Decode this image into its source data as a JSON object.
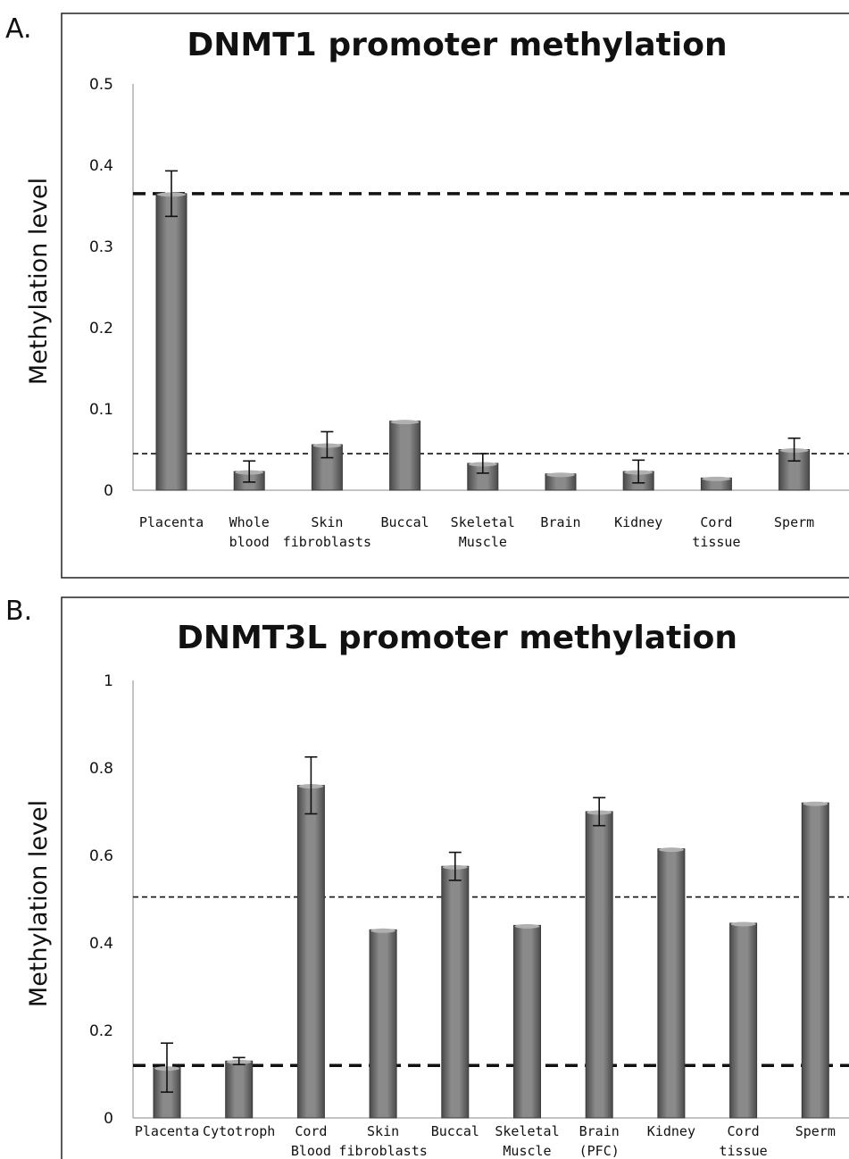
{
  "panels": [
    {
      "label": "A."
    },
    {
      "label": "B."
    }
  ],
  "chart_data": [
    {
      "type": "bar",
      "title": "DNMT1 promoter methylation",
      "ylabel": "Methylation level",
      "xlabel": "",
      "ylim": [
        0,
        0.5
      ],
      "yticks": [
        "0",
        "0.1",
        "0.2",
        "0.3",
        "0.4",
        "0.5"
      ],
      "grid": false,
      "legend": "none",
      "bar_color": "#6e6e6e",
      "categories": [
        [
          "Placenta"
        ],
        [
          "Whole",
          "blood"
        ],
        [
          "Skin",
          "fibroblasts"
        ],
        [
          "Buccal"
        ],
        [
          "Skeletal",
          "Muscle"
        ],
        [
          "Brain"
        ],
        [
          "Kidney"
        ],
        [
          "Cord",
          "tissue"
        ],
        [
          "Sperm"
        ]
      ],
      "values": [
        0.365,
        0.023,
        0.056,
        0.085,
        0.033,
        0.02,
        0.023,
        0.015,
        0.05
      ],
      "errors": [
        0.028,
        0.013,
        0.016,
        null,
        0.012,
        null,
        0.014,
        null,
        0.014
      ],
      "reference_lines": [
        {
          "y": 0.365,
          "style": "thick-dashed"
        },
        {
          "y": 0.045,
          "style": "thin-dashed"
        }
      ]
    },
    {
      "type": "bar",
      "title": "DNMT3L promoter methylation",
      "ylabel": "Methylation level",
      "xlabel": "",
      "ylim": [
        0,
        1
      ],
      "yticks": [
        "0",
        "0.2",
        "0.4",
        "0.6",
        "0.8",
        "1"
      ],
      "grid": false,
      "legend": "none",
      "bar_color": "#6e6e6e",
      "categories": [
        [
          "Placenta"
        ],
        [
          "Cytotroph"
        ],
        [
          "Cord",
          "Blood"
        ],
        [
          "Skin",
          "fibroblasts"
        ],
        [
          "Buccal"
        ],
        [
          "Skeletal",
          "Muscle"
        ],
        [
          "Brain",
          "(PFC)"
        ],
        [
          "Kidney"
        ],
        [
          "Cord",
          "tissue"
        ],
        [
          "Sperm"
        ]
      ],
      "values": [
        0.115,
        0.13,
        0.76,
        0.43,
        0.575,
        0.44,
        0.7,
        0.615,
        0.445,
        0.72
      ],
      "errors": [
        0.056,
        0.008,
        0.065,
        null,
        0.032,
        null,
        0.032,
        null,
        null,
        null
      ],
      "reference_lines": [
        {
          "y": 0.505,
          "style": "thin-dashed"
        },
        {
          "y": 0.12,
          "style": "thick-dashed"
        }
      ]
    }
  ]
}
